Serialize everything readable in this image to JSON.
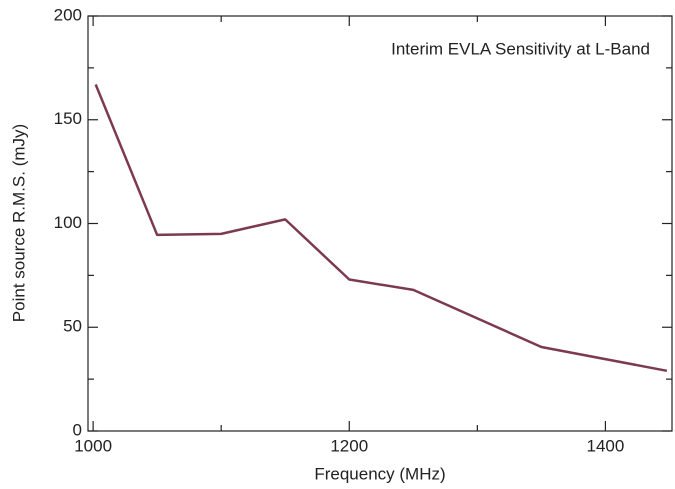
{
  "chart_data": {
    "type": "line",
    "annotation": "Interim EVLA Sensitivity at L-Band",
    "x_label": "Frequency (MHz)",
    "y_label": "Point source R.M.S. (mJy)",
    "x": [
      1002,
      1050,
      1100,
      1150,
      1200,
      1250,
      1350,
      1448
    ],
    "series": [
      {
        "name": "Interim EVLA Sensitivity",
        "color": "#7b3a52",
        "values": [
          167,
          94.5,
          95,
          102,
          73,
          68,
          40.5,
          29
        ]
      }
    ],
    "xlim": [
      996,
      1452
    ],
    "xticks": [
      1000,
      1200,
      1400
    ],
    "xminorticks": [
      1100,
      1300
    ],
    "ylim": [
      0,
      200
    ],
    "yticks": [
      0,
      50,
      100,
      150,
      200
    ],
    "yminorticks": [
      25,
      75,
      125,
      175
    ]
  }
}
